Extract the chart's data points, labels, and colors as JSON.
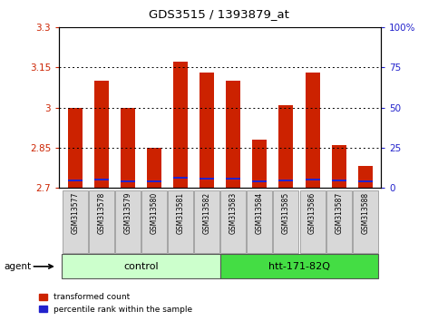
{
  "title": "GDS3515 / 1393879_at",
  "samples": [
    "GSM313577",
    "GSM313578",
    "GSM313579",
    "GSM313580",
    "GSM313581",
    "GSM313582",
    "GSM313583",
    "GSM313584",
    "GSM313585",
    "GSM313586",
    "GSM313587",
    "GSM313588"
  ],
  "red_values": [
    3.0,
    3.1,
    3.0,
    2.85,
    3.17,
    3.13,
    3.1,
    2.88,
    3.01,
    3.13,
    2.86,
    2.78
  ],
  "blue_values": [
    2.725,
    2.728,
    2.722,
    2.72,
    2.735,
    2.73,
    2.73,
    2.722,
    2.723,
    2.728,
    2.723,
    2.72
  ],
  "base": 2.7,
  "ymin": 2.7,
  "ymax": 3.3,
  "yticks_left": [
    2.7,
    2.85,
    3.0,
    3.15,
    3.3
  ],
  "ytick_labels_left": [
    "2.7",
    "2.85",
    "3",
    "3.15",
    "3.3"
  ],
  "yticks_right": [
    0,
    25,
    50,
    75,
    100
  ],
  "ytick_labels_right": [
    "0",
    "25",
    "50",
    "75",
    "100%"
  ],
  "grid_lines": [
    2.85,
    3.0,
    3.15
  ],
  "control_label": "control",
  "treatment_label": "htt-171-82Q",
  "agent_label": "agent",
  "legend_red": "transformed count",
  "legend_blue": "percentile rank within the sample",
  "bar_color_red": "#cc2200",
  "bar_color_blue": "#2222cc",
  "control_bg": "#ccffcc",
  "treatment_bg": "#44dd44",
  "xticklabel_bg": "#d8d8d8",
  "bar_width": 0.55,
  "blue_bar_height": 0.007
}
